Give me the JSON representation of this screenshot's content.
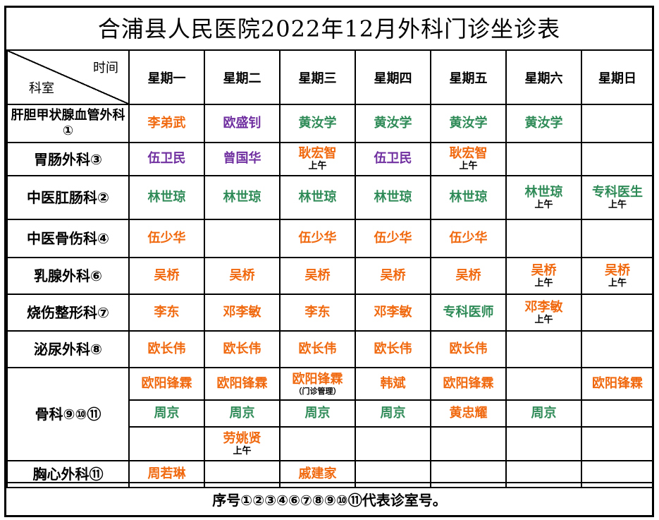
{
  "title": "合浦县人民医院2022年12月外科门诊坐诊表",
  "header": {
    "corner_top": "时间",
    "corner_bottom": "科室",
    "days": [
      "星期一",
      "星期二",
      "星期三",
      "星期四",
      "星期五",
      "星期六",
      "星期日"
    ]
  },
  "colors": {
    "orange": "#f0690f",
    "purple": "#7030a0",
    "green": "#2e8b57"
  },
  "rows": [
    {
      "dept": "肝胆甲状腺血管外科①",
      "cells": [
        {
          "name": "李弟武",
          "color": "orange"
        },
        {
          "name": "欧盛钊",
          "color": "purple"
        },
        {
          "name": "黄汝学",
          "color": "green"
        },
        {
          "name": "黄汝学",
          "color": "green"
        },
        {
          "name": "黄汝学",
          "color": "green"
        },
        {
          "name": "黄汝学",
          "color": "green"
        },
        {
          "name": ""
        }
      ]
    },
    {
      "dept": "胃肠外科③",
      "cells": [
        {
          "name": "伍卫民",
          "color": "purple"
        },
        {
          "name": "曾国华",
          "color": "purple"
        },
        {
          "name": "耿宏智",
          "color": "orange",
          "note": "上午"
        },
        {
          "name": "伍卫民",
          "color": "purple"
        },
        {
          "name": "耿宏智",
          "color": "orange",
          "note": "上午"
        },
        {
          "name": ""
        },
        {
          "name": ""
        }
      ]
    },
    {
      "dept": "中医肛肠科②",
      "cells": [
        {
          "name": "林世琼",
          "color": "green"
        },
        {
          "name": "林世琼",
          "color": "green"
        },
        {
          "name": "林世琼",
          "color": "green"
        },
        {
          "name": "林世琼",
          "color": "green"
        },
        {
          "name": "林世琼",
          "color": "green"
        },
        {
          "name": "林世琼",
          "color": "green",
          "note": "上午"
        },
        {
          "name": "专科医生",
          "color": "green",
          "note": "上午"
        }
      ]
    },
    {
      "dept": "中医骨伤科④",
      "cells": [
        {
          "name": "伍少华",
          "color": "orange"
        },
        {
          "name": ""
        },
        {
          "name": "伍少华",
          "color": "orange"
        },
        {
          "name": "伍少华",
          "color": "orange"
        },
        {
          "name": "伍少华",
          "color": "orange"
        },
        {
          "name": ""
        },
        {
          "name": ""
        }
      ]
    },
    {
      "dept": "乳腺外科⑥",
      "cells": [
        {
          "name": "吴桥",
          "color": "orange"
        },
        {
          "name": "吴桥",
          "color": "orange"
        },
        {
          "name": "吴桥",
          "color": "orange"
        },
        {
          "name": "吴桥",
          "color": "orange"
        },
        {
          "name": "吴桥",
          "color": "orange"
        },
        {
          "name": "吴桥",
          "color": "orange",
          "note": "上午"
        },
        {
          "name": "吴桥",
          "color": "orange",
          "note": "上午"
        }
      ]
    },
    {
      "dept": "烧伤整形科⑦",
      "cells": [
        {
          "name": "李东",
          "color": "orange"
        },
        {
          "name": "邓李敏",
          "color": "orange"
        },
        {
          "name": "李东",
          "color": "orange"
        },
        {
          "name": "邓李敏",
          "color": "orange"
        },
        {
          "name": "专科医师",
          "color": "green"
        },
        {
          "name": "邓李敏",
          "color": "orange",
          "note": "上午"
        },
        {
          "name": ""
        }
      ]
    },
    {
      "dept": "泌尿外科⑧",
      "cells": [
        {
          "name": "欧长伟",
          "color": "orange"
        },
        {
          "name": "欧长伟",
          "color": "orange"
        },
        {
          "name": "欧长伟",
          "color": "orange"
        },
        {
          "name": "欧长伟",
          "color": "orange"
        },
        {
          "name": "欧长伟",
          "color": "orange"
        },
        {
          "name": ""
        },
        {
          "name": ""
        }
      ]
    }
  ],
  "bone": {
    "dept": "骨科⑨⑩⑪",
    "rows": [
      [
        {
          "name": "欧阳锋霖",
          "color": "orange"
        },
        {
          "name": "欧阳锋霖",
          "color": "orange"
        },
        {
          "name": "欧阳锋霖",
          "color": "orange",
          "note": "（门诊管理）"
        },
        {
          "name": "韩斌",
          "color": "orange"
        },
        {
          "name": "欧阳锋霖",
          "color": "orange"
        },
        {
          "name": ""
        },
        {
          "name": "欧阳锋霖",
          "color": "orange"
        }
      ],
      [
        {
          "name": "周京",
          "color": "green"
        },
        {
          "name": "周京",
          "color": "green"
        },
        {
          "name": "周京",
          "color": "green"
        },
        {
          "name": "周京",
          "color": "green"
        },
        {
          "name": "黄忠耀",
          "color": "orange"
        },
        {
          "name": "周京",
          "color": "green"
        },
        {
          "name": ""
        }
      ],
      [
        {
          "name": ""
        },
        {
          "name": "劳姚贤",
          "color": "orange",
          "note": "上午"
        },
        {
          "name": ""
        },
        {
          "name": ""
        },
        {
          "name": ""
        },
        {
          "name": ""
        },
        {
          "name": ""
        }
      ]
    ]
  },
  "chest": {
    "dept": "胸心外科⑪",
    "cells": [
      {
        "name": "周若琳",
        "color": "orange"
      },
      {
        "name": ""
      },
      {
        "name": "戚建家",
        "color": "orange"
      },
      {
        "name": ""
      },
      {
        "name": ""
      },
      {
        "name": ""
      },
      {
        "name": ""
      }
    ]
  },
  "footer": "序号①②③④⑥⑦⑧⑨⑩⑪代表诊室号。"
}
